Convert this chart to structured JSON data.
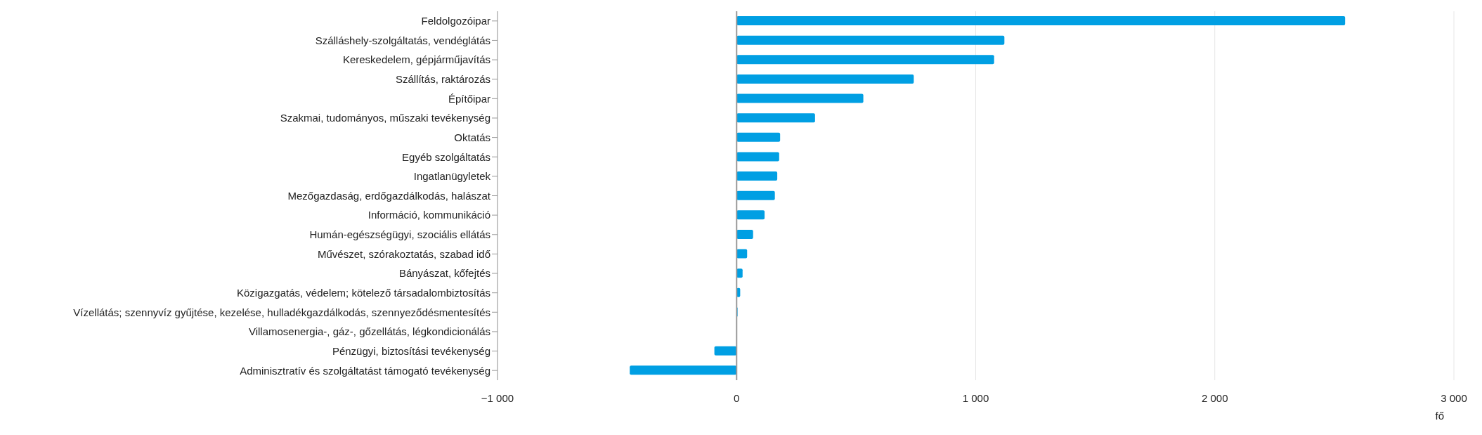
{
  "chart_data": {
    "type": "bar",
    "orientation": "horizontal",
    "xlabel": "fő",
    "categories": [
      "Feldolgozóipar",
      "Szálláshely-szolgáltatás, vendéglátás",
      "Kereskedelem, gépjárműjavítás",
      "Szállítás, raktározás",
      "Építőipar",
      "Szakmai, tudományos, műszaki tevékenység",
      "Oktatás",
      "Egyéb szolgáltatás",
      "Ingatlanügyletek",
      "Mezőgazdaság, erdőgazdálkodás, halászat",
      "Információ, kommunikáció",
      "Humán-egészségügyi, szociális ellátás",
      "Művészet, szórakoztatás, szabad idő",
      "Bányászat, kőfejtés",
      "Közigazgatás, védelem; kötelező társadalombiztosítás",
      "Vízellátás; szennyvíz gyűjtése, kezelése, hulladékgazdálkodás, szennyeződésmentesítés",
      "Villamosenergia-, gáz-, gőzellátás, légkondicionálás",
      "Pénzügyi, biztosítási tevékenység",
      "Adminisztratív és szolgáltatást támogató tevékenység"
    ],
    "values": [
      2545,
      1120,
      1077,
      741,
      530,
      328,
      182,
      178,
      170,
      160,
      117,
      69,
      44,
      25,
      15,
      4,
      null,
      -93,
      -447
    ],
    "color": "#009fe3",
    "xlim": [
      -1000,
      3000
    ],
    "xticks": [
      {
        "value": -1000,
        "label": "−1 000"
      },
      0,
      {
        "value": 1000,
        "label": "1 000"
      },
      {
        "value": 2000,
        "label": "2 000"
      },
      {
        "value": 3000,
        "label": "3 000"
      }
    ],
    "grid": "x",
    "ref_lines": [
      {
        "axis": "x",
        "value": 0,
        "color": "#999999"
      }
    ]
  }
}
